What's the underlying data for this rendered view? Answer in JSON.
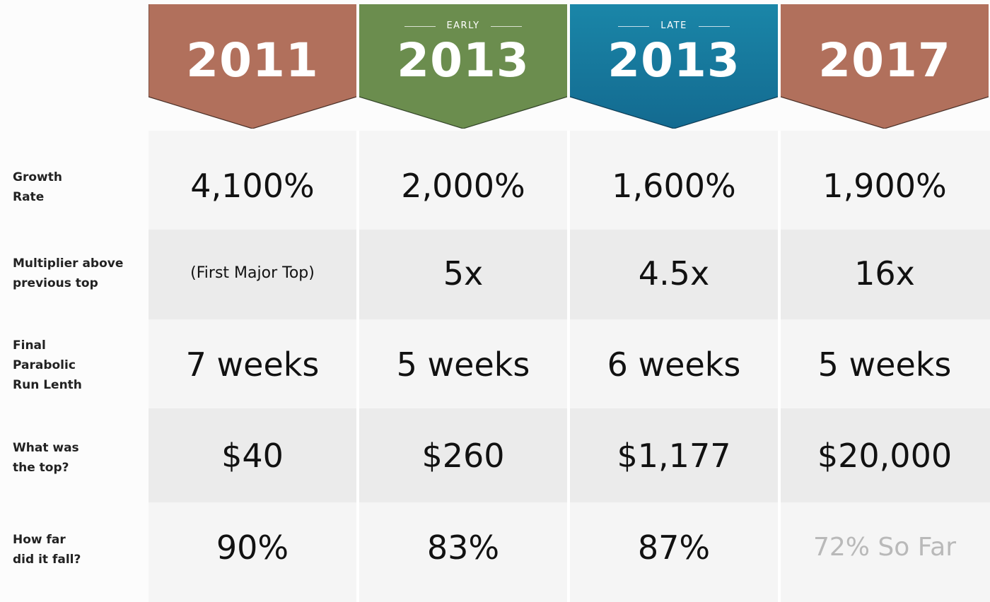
{
  "columns": [
    {
      "year": "2011",
      "sub": "",
      "color": "#b1705c"
    },
    {
      "year": "2013",
      "sub": "EARLY",
      "color": "#6b8d4e"
    },
    {
      "year": "2013",
      "sub": "LATE",
      "color": "#1a7fa0"
    },
    {
      "year": "2017",
      "sub": "",
      "color": "#b1705c"
    }
  ],
  "rows": [
    {
      "label": [
        "Growth",
        "Rate"
      ],
      "values": [
        "4,100%",
        "2,000%",
        "1,600%",
        "1,900%"
      ]
    },
    {
      "label": [
        "Multiplier above",
        "previous top"
      ],
      "values": [
        "(First Major Top)",
        "5x",
        "4.5x",
        "16x"
      ]
    },
    {
      "label": [
        "Final",
        "Parabolic",
        "Run Lenth"
      ],
      "values": [
        "7 weeks",
        "5 weeks",
        "6 weeks",
        "5 weeks"
      ]
    },
    {
      "label": [
        "What was",
        "the top?"
      ],
      "values": [
        "$40",
        "$260",
        "$1,177",
        "$20,000"
      ]
    },
    {
      "label": [
        "How far",
        "did it fall?"
      ],
      "values": [
        "90%",
        "83%",
        "87%",
        "72% So Far"
      ]
    }
  ]
}
